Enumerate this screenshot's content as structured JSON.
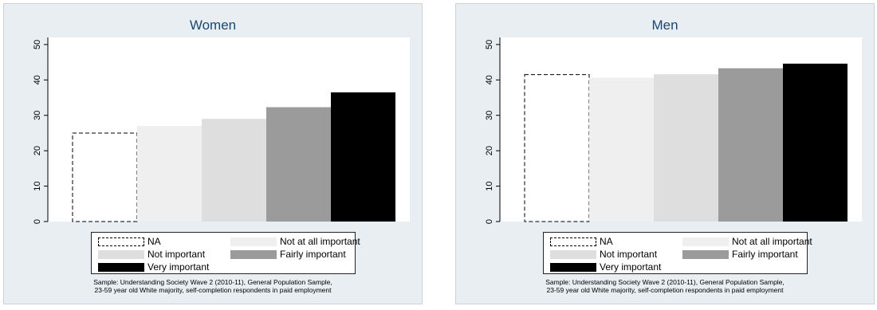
{
  "chart_data": [
    {
      "type": "bar",
      "title": "Women",
      "categories": [
        "NA",
        "Not at all important",
        "Not important",
        "Fairly important",
        "Very important"
      ],
      "values": [
        25.0,
        27.0,
        29.0,
        32.3,
        36.5
      ],
      "ylim": [
        0,
        52
      ],
      "yticks": [
        0,
        10,
        20,
        30,
        40,
        50
      ],
      "xlabel": "",
      "ylabel": "",
      "grid": false,
      "legend_position": "bottom",
      "note": [
        "Sample: Understanding Society Wave 2 (2010-11), General Population Sample,",
        "23-59 year old White majority, self-completion respondents in paid employment"
      ]
    },
    {
      "type": "bar",
      "title": "Men",
      "categories": [
        "NA",
        "Not at all important",
        "Not important",
        "Fairly important",
        "Very important"
      ],
      "values": [
        41.5,
        40.6,
        41.6,
        43.3,
        44.6
      ],
      "ylim": [
        0,
        52
      ],
      "yticks": [
        0,
        10,
        20,
        30,
        40,
        50
      ],
      "xlabel": "",
      "ylabel": "",
      "grid": false,
      "legend_position": "bottom",
      "note": [
        "Sample: Understanding Society Wave 2 (2010-11), General Population Sample,",
        "23-59 year old White majority, self-completion respondents in paid employment"
      ]
    }
  ],
  "series_colors": {
    "NA": "#ffffff",
    "Not at all important": "#efefef",
    "Not important": "#dedede",
    "Fairly important": "#9b9b9b",
    "Very important": "#000000"
  },
  "colors": {
    "panel_background": "#e9eef3",
    "plot_background": "#ffffff",
    "title": "#1a476f"
  }
}
